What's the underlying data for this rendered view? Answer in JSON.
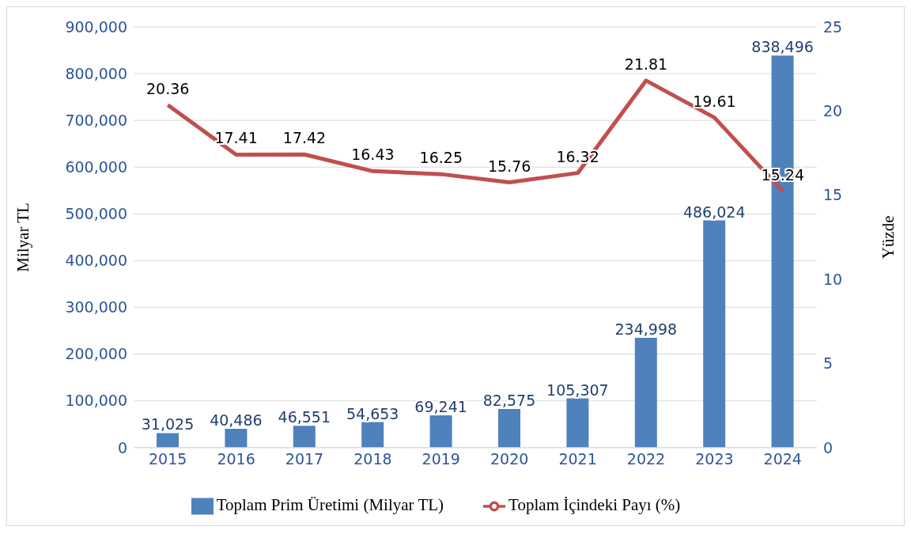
{
  "chart_data": {
    "type": "bar",
    "categories": [
      "2015",
      "2016",
      "2017",
      "2018",
      "2019",
      "2020",
      "2021",
      "2022",
      "2023",
      "2024"
    ],
    "ylabel": "Milyar TL",
    "y2label": "Yüzde",
    "ylim": [
      0,
      900000
    ],
    "yticks": [
      {
        "value": 0,
        "label": "0"
      },
      {
        "value": 100000,
        "label": "100,000"
      },
      {
        "value": 200000,
        "label": "200,000"
      },
      {
        "value": 300000,
        "label": "300,000"
      },
      {
        "value": 400000,
        "label": "400,000"
      },
      {
        "value": 500000,
        "label": "500,000"
      },
      {
        "value": 600000,
        "label": "600,000"
      },
      {
        "value": 700000,
        "label": "700,000"
      },
      {
        "value": 800000,
        "label": "800,000"
      },
      {
        "value": 900000,
        "label": "900,000"
      }
    ],
    "y2lim": [
      0,
      25
    ],
    "y2ticks": [
      0,
      5,
      10,
      15,
      20,
      25
    ],
    "grid": "y",
    "legend": "bottom",
    "series": [
      {
        "name": "Toplam Prim Üretimi (Milyar TL)",
        "axis": "y",
        "color": "#4f81bd",
        "values": [
          31025,
          40486,
          46551,
          54653,
          69241,
          82575,
          105307,
          234998,
          486024,
          838496
        ],
        "value_labels": [
          "31,025",
          "40,486",
          "46,551",
          "54,653",
          "69,241",
          "82,575",
          "105,307",
          "234,998",
          "486,024",
          "838,496"
        ]
      },
      {
        "name": "Toplam İçindeki Payı (%)",
        "type": "line",
        "axis": "y2",
        "color": "#c0504d",
        "values": [
          20.36,
          17.41,
          17.42,
          16.43,
          16.25,
          15.76,
          16.32,
          21.81,
          19.61,
          15.24
        ],
        "value_labels": [
          "20.36",
          "17.41",
          "17.42",
          "16.43",
          "16.25",
          "15.76",
          "16.32",
          "21.81",
          "19.61",
          "15.24"
        ]
      }
    ]
  }
}
